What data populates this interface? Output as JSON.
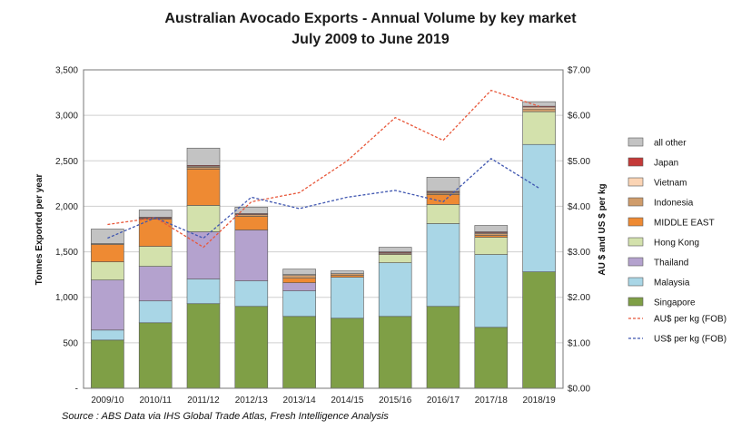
{
  "chart_data": {
    "type": "bar",
    "stacked": true,
    "title_line1": "Australian Avocado Exports - Annual Volume by key market",
    "title_line2": "July 2009 to June 2019",
    "ylabel": "Tonnes Exported per year",
    "y2label": "AU $  and US $ per kg",
    "ylim": [
      0,
      3500
    ],
    "y2lim": [
      0,
      7
    ],
    "y_ticks": [
      "-",
      "500",
      "1,000",
      "1,500",
      "2,000",
      "2,500",
      "3,000",
      "3,500"
    ],
    "y2_ticks": [
      "$0.00",
      "$1.00",
      "$2.00",
      "$3.00",
      "$4.00",
      "$5.00",
      "$6.00",
      "$7.00"
    ],
    "categories": [
      "2009/10",
      "2010/11",
      "2011/12",
      "2012/13",
      "2013/14",
      "2014/15",
      "2015/16",
      "2016/17",
      "2017/18",
      "2018/19"
    ],
    "series": [
      {
        "name": "Singapore",
        "color": "#7f9f46",
        "values": [
          530,
          720,
          930,
          900,
          790,
          770,
          790,
          900,
          670,
          1280
        ]
      },
      {
        "name": "Malaysia",
        "color": "#a9d6e6",
        "values": [
          110,
          240,
          270,
          280,
          280,
          450,
          590,
          910,
          800,
          1400
        ]
      },
      {
        "name": "Thailand",
        "color": "#b4a2ce",
        "values": [
          550,
          380,
          520,
          560,
          90,
          0,
          0,
          0,
          0,
          0
        ]
      },
      {
        "name": "Hong Kong",
        "color": "#d3e1ac",
        "values": [
          200,
          220,
          290,
          0,
          0,
          0,
          90,
          210,
          190,
          360
        ]
      },
      {
        "name": "MIDDLE EAST",
        "color": "#ee8a33",
        "values": [
          190,
          300,
          400,
          150,
          50,
          20,
          0,
          110,
          20,
          0
        ]
      },
      {
        "name": "Indonesia",
        "color": "#cf9c6b",
        "values": [
          10,
          10,
          20,
          20,
          30,
          20,
          10,
          15,
          20,
          30
        ]
      },
      {
        "name": "Vietnam",
        "color": "#fbd4b4",
        "values": [
          0,
          0,
          10,
          0,
          10,
          0,
          10,
          10,
          10,
          20
        ]
      },
      {
        "name": "Japan",
        "color": "#c43a38",
        "values": [
          0,
          10,
          10,
          10,
          0,
          0,
          10,
          10,
          10,
          10
        ]
      },
      {
        "name": "all other",
        "color": "#c3c3c3",
        "values": [
          160,
          80,
          190,
          70,
          60,
          30,
          50,
          155,
          70,
          50
        ]
      }
    ],
    "lines": [
      {
        "name": "AU$ per kg (FOB)",
        "color": "#e8583b",
        "values": [
          3.6,
          3.75,
          3.1,
          4.1,
          4.3,
          5.0,
          5.95,
          5.45,
          6.55,
          6.2
        ]
      },
      {
        "name": "US$ per kg (FOB)",
        "color": "#3f56b0",
        "values": [
          3.3,
          3.75,
          3.3,
          4.2,
          3.95,
          4.2,
          4.35,
          4.1,
          5.05,
          4.4
        ]
      }
    ],
    "legend_order": [
      "all other",
      "Japan",
      "Vietnam",
      "Indonesia",
      "MIDDLE EAST",
      "Hong Kong",
      "Thailand",
      "Malaysia",
      "Singapore"
    ],
    "legend_position": "right",
    "grid": true,
    "source": "Source : ABS Data via IHS Global Trade Atlas, Fresh Intelligence Analysis"
  }
}
